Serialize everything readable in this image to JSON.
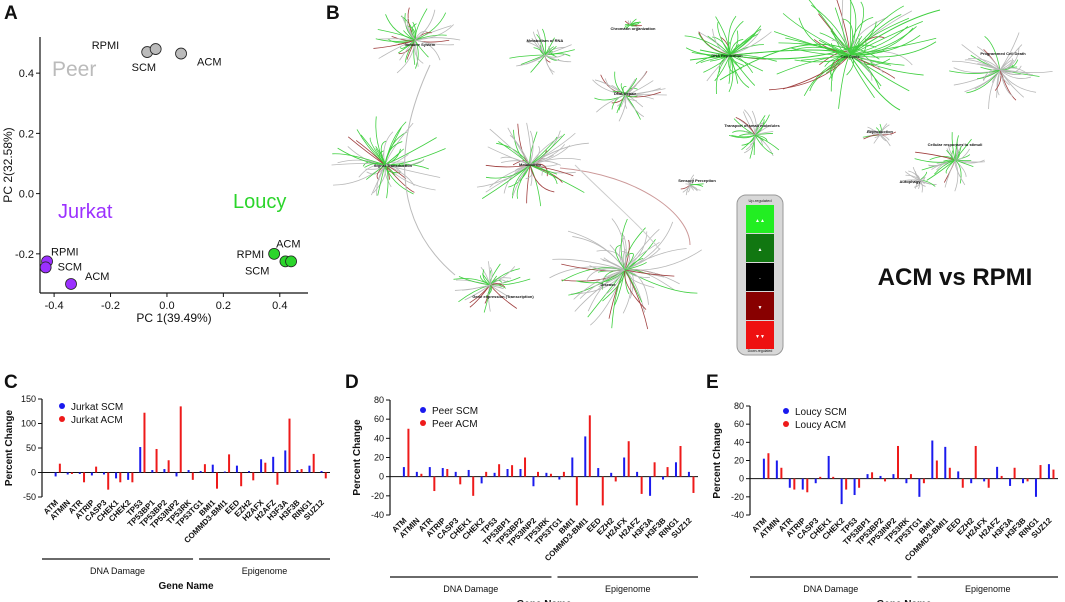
{
  "panels": {
    "a": {
      "letter": "A"
    },
    "b": {
      "letter": "B"
    },
    "c": {
      "letter": "C"
    },
    "d": {
      "letter": "D"
    },
    "e": {
      "letter": "E"
    }
  },
  "reactome": {
    "nodes": [
      {
        "label": "Immune System"
      },
      {
        "label": "Metabolism of RNA"
      },
      {
        "label": "Chromatin organization"
      },
      {
        "label": "DNA Replication"
      },
      {
        "label": "Cell Cycle"
      },
      {
        "label": "Programmed Cell Death"
      },
      {
        "label": "DNA Repair"
      },
      {
        "label": "Transport of small molecules"
      },
      {
        "label": "Reproduction"
      },
      {
        "label": "Cellular responses to stimuli"
      },
      {
        "label": "Signal Transduction"
      },
      {
        "label": "Metabolism"
      },
      {
        "label": "Autophagy"
      },
      {
        "label": "Sensory Perception"
      },
      {
        "label": "Gene expression (Transcription)"
      },
      {
        "label": "Disease"
      }
    ],
    "legend": {
      "title": "Up-regulated",
      "footer": "Down-regulated",
      "colors": [
        "#22ee22",
        "#117711",
        "#000000",
        "#880000",
        "#ee1111"
      ]
    },
    "comparison_label": "ACM vs RPMI"
  },
  "chart_data": [
    {
      "id": "A",
      "type": "scatter",
      "xlabel": "PC 1(39.49%)",
      "ylabel": "PC 2(32.58%)",
      "xlim": [
        -0.45,
        0.5
      ],
      "ylim": [
        -0.33,
        0.52
      ],
      "xticks": [
        "-0.4",
        "-0.2",
        "0.0",
        "0.2",
        "0.4"
      ],
      "yticks": [
        "-0.2",
        "0.0",
        "0.2",
        "0.4"
      ],
      "groups": [
        {
          "name": "Peer",
          "color": "#bbbbbb",
          "points": [
            {
              "label": "RPMI",
              "x": -0.07,
              "y": 0.47
            },
            {
              "label": "SCM",
              "x": -0.04,
              "y": 0.48
            },
            {
              "label": "ACM",
              "x": 0.05,
              "y": 0.465
            }
          ]
        },
        {
          "name": "Jurkat",
          "color": "#9b30ff",
          "points": [
            {
              "label": "RPMI",
              "x": -0.425,
              "y": -0.225
            },
            {
              "label": "SCM",
              "x": -0.43,
              "y": -0.245
            },
            {
              "label": "ACM",
              "x": -0.34,
              "y": -0.3
            }
          ]
        },
        {
          "name": "Loucy",
          "color": "#2bd52b",
          "points": [
            {
              "label": "RPMI",
              "x": 0.38,
              "y": -0.2
            },
            {
              "label": "SCM",
              "x": 0.42,
              "y": -0.225
            },
            {
              "label": "ACM",
              "x": 0.44,
              "y": -0.225
            }
          ]
        }
      ]
    },
    {
      "id": "C",
      "type": "bar",
      "ylabel": "Percent Change",
      "xlabel": "Gene Name",
      "ylim": [
        -50,
        150
      ],
      "yticks": [
        -50,
        0,
        50,
        100,
        150
      ],
      "groups": [
        "DNA Damage",
        "Epigenome"
      ],
      "genes": [
        "ATM",
        "ATMIN",
        "ATR",
        "ATRIP",
        "CASP3",
        "CHEK1",
        "CHEK2",
        "TP53",
        "TP53BP1",
        "TP53BP2",
        "TP53INP2",
        "TP53RK",
        "TP53TG1",
        "BMI1",
        "COMMD3-BMI1",
        "EED",
        "EZH2",
        "H2AFX",
        "H2AFZ",
        "H3F3A",
        "H3F3B",
        "RING1",
        "SUZ12"
      ],
      "series": [
        {
          "name": "Jurkat SCM",
          "color": "#1a1aee",
          "values": [
            -8,
            -4,
            -3,
            -6,
            -4,
            -12,
            -15,
            52,
            5,
            7,
            -8,
            5,
            3,
            16,
            2,
            14,
            3,
            27,
            32,
            45,
            5,
            14,
            3
          ]
        },
        {
          "name": "Jurkat ACM",
          "color": "#ee1a1a",
          "values": [
            18,
            -3,
            -20,
            12,
            -35,
            -20,
            -20,
            122,
            48,
            25,
            135,
            -15,
            17,
            -33,
            37,
            -28,
            -16,
            20,
            -25,
            110,
            7,
            38,
            -12
          ]
        }
      ]
    },
    {
      "id": "D",
      "type": "bar",
      "ylabel": "Percent Change",
      "xlabel": "Gene Name",
      "ylim": [
        -40,
        80
      ],
      "yticks": [
        -40,
        -20,
        0,
        20,
        40,
        60,
        80
      ],
      "groups": [
        "DNA Damage",
        "Epigenome"
      ],
      "genes": [
        "ATM",
        "ATMIN",
        "ATR",
        "ATRIP",
        "CASP3",
        "CHEK1",
        "CHEK2",
        "TP53",
        "TP53BP1",
        "TP53BP2",
        "TP53INP2",
        "TP53RK",
        "TP53TG1",
        "BMI1",
        "COMMD3-BMI1",
        "EED",
        "EZH2",
        "H2AFX",
        "H2AFZ",
        "H3F3A",
        "H3F3B",
        "RING1",
        "SUZ12"
      ],
      "series": [
        {
          "name": "Peer SCM",
          "color": "#1a1aee",
          "values": [
            10,
            5,
            10,
            9,
            5,
            7,
            -7,
            4,
            8,
            8,
            -10,
            4,
            -3,
            20,
            42,
            9,
            4,
            20,
            5,
            -20,
            -3,
            15,
            5
          ]
        },
        {
          "name": "Peer ACM",
          "color": "#ee1a1a",
          "values": [
            50,
            3,
            -15,
            8,
            -8,
            -20,
            5,
            13,
            12,
            20,
            5,
            3,
            5,
            -30,
            64,
            -30,
            -5,
            37,
            -18,
            15,
            10,
            32,
            -17
          ]
        }
      ]
    },
    {
      "id": "E",
      "type": "bar",
      "ylabel": "Percent Change",
      "xlabel": "Gene Name",
      "ylim": [
        -40,
        80
      ],
      "yticks": [
        -40,
        -20,
        0,
        20,
        40,
        60,
        80
      ],
      "groups": [
        "DNA Damage",
        "Epigenome"
      ],
      "genes": [
        "ATM",
        "ATMIN",
        "ATR",
        "ATRIP",
        "CASP3",
        "CHEK1",
        "CHEK2",
        "TP53",
        "TP53BP1",
        "TP53BP2",
        "TP53INP2",
        "TP53RK",
        "TP53TG1",
        "BMI1",
        "COMMD3-BMI1",
        "EED",
        "EZH2",
        "H2AFX",
        "H2AFZ",
        "H3F3A",
        "H3F3B",
        "RING1",
        "SUZ12"
      ],
      "series": [
        {
          "name": "Loucy SCM",
          "color": "#1a1aee",
          "values": [
            22,
            20,
            -10,
            -12,
            -5,
            25,
            -28,
            -18,
            5,
            3,
            5,
            -5,
            -20,
            42,
            35,
            8,
            -5,
            -3,
            13,
            -8,
            -5,
            -20,
            16
          ]
        },
        {
          "name": "Loucy ACM",
          "color": "#ee1a1a",
          "values": [
            28,
            12,
            -12,
            -15,
            2,
            2,
            -12,
            -10,
            7,
            -3,
            36,
            5,
            -5,
            20,
            12,
            -10,
            36,
            -10,
            3,
            12,
            -3,
            15,
            10
          ]
        }
      ]
    }
  ]
}
